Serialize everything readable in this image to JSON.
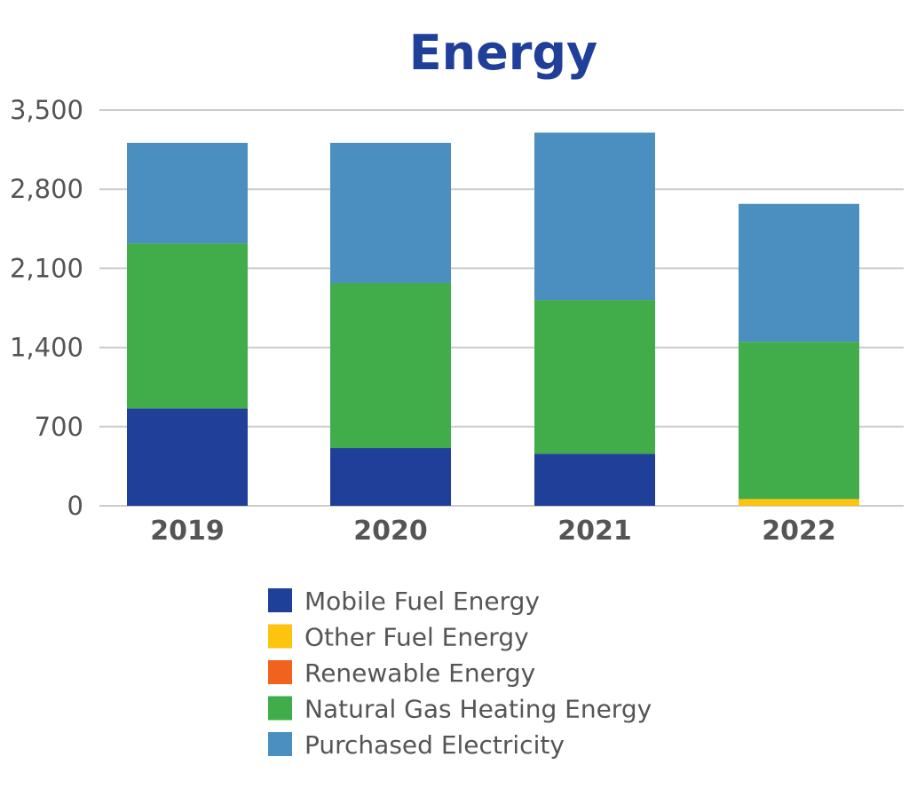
{
  "chart_data": {
    "type": "bar",
    "stacked": true,
    "title": "Energy",
    "xlabel": "",
    "ylabel": "",
    "categories": [
      "2019",
      "2020",
      "2021",
      "2022"
    ],
    "ylim": [
      0,
      3500
    ],
    "yticks": [
      0,
      700,
      1400,
      2100,
      2800,
      3500
    ],
    "ytick_labels": [
      "0",
      "700",
      "1,400",
      "2,100",
      "2,800",
      "3,500"
    ],
    "grid": true,
    "legend_position": "bottom",
    "series": [
      {
        "name": "Mobile Fuel Energy",
        "color": "#1f3f99",
        "values": [
          860,
          510,
          460,
          0
        ]
      },
      {
        "name": "Other Fuel Energy",
        "color": "#fcc30f",
        "values": [
          0,
          0,
          0,
          60
        ]
      },
      {
        "name": "Renewable Energy",
        "color": "#f0621e",
        "values": [
          0,
          0,
          0,
          0
        ]
      },
      {
        "name": "Natural Gas Heating Energy",
        "color": "#40ad4a",
        "values": [
          1460,
          1460,
          1360,
          1390
        ]
      },
      {
        "name": "Purchased Electricity",
        "color": "#4a8fbf",
        "values": [
          890,
          1240,
          1480,
          1220
        ]
      }
    ],
    "colors": {
      "title": "#1f3f99",
      "axis_text": "#555555",
      "grid": "#cccccc"
    }
  }
}
